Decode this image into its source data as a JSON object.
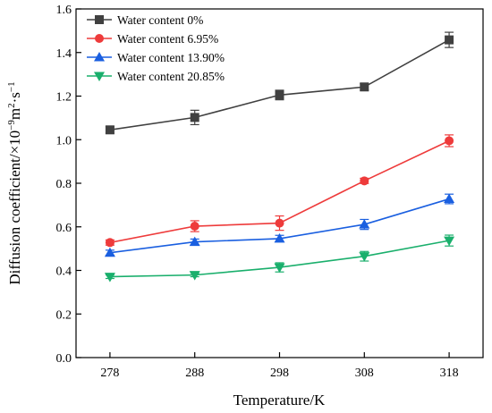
{
  "chart_data": {
    "type": "line",
    "title": "",
    "xlabel": "Temperature/K",
    "ylabel_parts": [
      "Diffusion coefficient/×10",
      "−9",
      "m",
      "2",
      "·s",
      "−1"
    ],
    "x": [
      278,
      288,
      298,
      308,
      318
    ],
    "x_tick_labels": [
      "278",
      "288",
      "298",
      "308",
      "318"
    ],
    "xlim": [
      274,
      322
    ],
    "ylim": [
      0.0,
      1.6
    ],
    "y_ticks": [
      0.0,
      0.2,
      0.4,
      0.6,
      0.8,
      1.0,
      1.2,
      1.4,
      1.6
    ],
    "y_tick_labels": [
      "0.0",
      "0.2",
      "0.4",
      "0.6",
      "0.8",
      "1.0",
      "1.2",
      "1.4",
      "1.6"
    ],
    "grid": false,
    "legend_position": "top-left",
    "series": [
      {
        "name": "Water content 0%",
        "color": "#404040",
        "marker": "square",
        "values": [
          1.045,
          1.102,
          1.205,
          1.242,
          1.458
        ],
        "errors": [
          0.015,
          0.033,
          0.022,
          0.015,
          0.035
        ]
      },
      {
        "name": "Water content 6.95%",
        "color": "#ee3b3b",
        "marker": "circle",
        "values": [
          0.528,
          0.603,
          0.617,
          0.811,
          0.995
        ],
        "errors": [
          0.012,
          0.025,
          0.033,
          0.012,
          0.027
        ]
      },
      {
        "name": "Water content 13.90%",
        "color": "#1a5fe0",
        "marker": "triangle-up",
        "values": [
          0.481,
          0.531,
          0.546,
          0.611,
          0.728
        ],
        "errors": [
          0.012,
          0.013,
          0.015,
          0.023,
          0.022
        ]
      },
      {
        "name": "Water content 20.85%",
        "color": "#1aaf6c",
        "marker": "triangle-down",
        "values": [
          0.371,
          0.379,
          0.414,
          0.465,
          0.537
        ],
        "errors": [
          0.008,
          0.008,
          0.021,
          0.022,
          0.025
        ]
      }
    ]
  }
}
